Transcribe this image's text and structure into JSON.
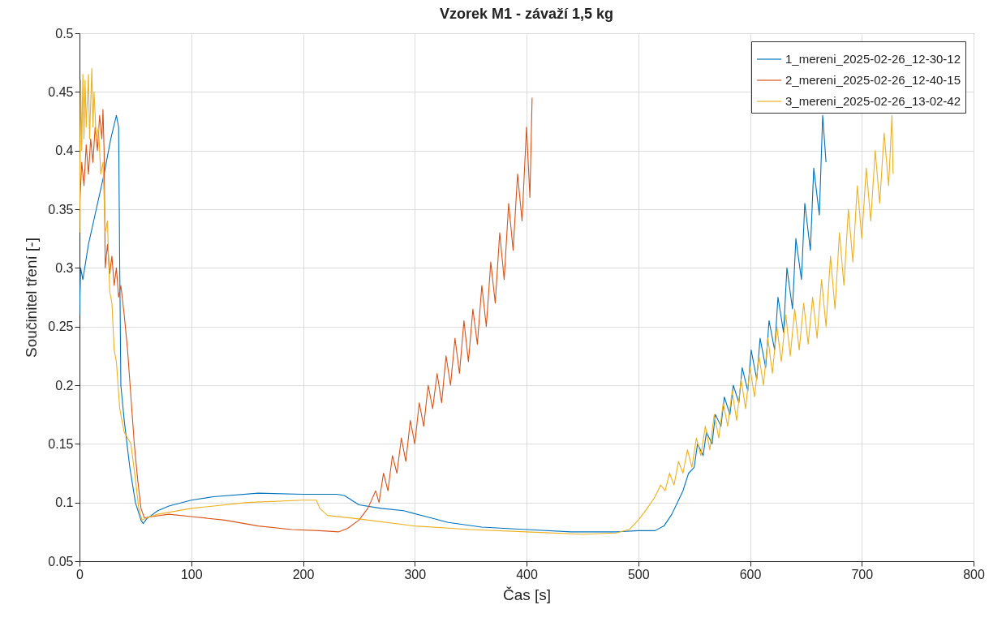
{
  "chart_data": {
    "type": "line",
    "title": "Vzorek M1 - závaží 1,5 kg",
    "xlabel": "Čas [s]",
    "ylabel": "Součinitel tření [-]",
    "xlim": [
      0,
      800
    ],
    "xticks": [
      0,
      100,
      200,
      300,
      400,
      500,
      600,
      700,
      800
    ],
    "ylim": [
      0.05,
      0.5
    ],
    "yticks": [
      0.05,
      0.1,
      0.15,
      0.2,
      0.25,
      0.3,
      0.35,
      0.4,
      0.45,
      0.5
    ],
    "grid": true,
    "legend": "top right",
    "series": [
      {
        "name": "1_mereni_2025-02-26_12-30-12",
        "color": "#0072bd",
        "x": [
          0,
          1,
          3,
          8,
          15,
          22,
          28,
          33,
          35,
          36,
          37,
          40,
          45,
          50,
          55,
          57,
          60,
          70,
          80,
          100,
          120,
          160,
          200,
          230,
          237,
          250,
          270,
          290,
          310,
          330,
          360,
          400,
          440,
          480,
          500,
          515,
          523,
          530,
          535,
          540,
          545,
          550,
          553,
          558,
          561,
          566,
          569,
          574,
          577,
          582,
          585,
          590,
          593,
          598,
          601,
          606,
          609,
          614,
          617,
          622,
          625,
          630,
          633,
          638,
          641,
          646,
          649,
          654,
          657,
          662,
          665,
          668
        ],
        "values": [
          0.26,
          0.3,
          0.29,
          0.32,
          0.35,
          0.38,
          0.41,
          0.43,
          0.42,
          0.3,
          0.2,
          0.17,
          0.13,
          0.1,
          0.085,
          0.082,
          0.086,
          0.093,
          0.097,
          0.102,
          0.105,
          0.108,
          0.107,
          0.107,
          0.106,
          0.098,
          0.095,
          0.093,
          0.088,
          0.083,
          0.079,
          0.077,
          0.075,
          0.075,
          0.076,
          0.076,
          0.08,
          0.09,
          0.1,
          0.11,
          0.125,
          0.13,
          0.15,
          0.14,
          0.16,
          0.15,
          0.175,
          0.165,
          0.19,
          0.175,
          0.2,
          0.185,
          0.215,
          0.195,
          0.23,
          0.205,
          0.24,
          0.215,
          0.255,
          0.23,
          0.275,
          0.245,
          0.3,
          0.265,
          0.325,
          0.29,
          0.355,
          0.315,
          0.385,
          0.345,
          0.43,
          0.39
        ]
      },
      {
        "name": "2_mereni_2025-02-26_12-40-15",
        "color": "#d95319",
        "x": [
          0,
          2,
          4,
          6,
          8,
          10,
          12,
          14,
          16,
          18,
          20,
          21,
          22,
          23,
          25,
          27,
          29,
          31,
          33,
          35,
          37,
          40,
          43,
          46,
          49,
          52,
          55,
          58,
          65,
          80,
          100,
          130,
          160,
          190,
          215,
          232,
          240,
          250,
          258,
          265,
          268,
          272,
          276,
          280,
          284,
          288,
          292,
          296,
          300,
          304,
          308,
          312,
          316,
          320,
          324,
          328,
          332,
          336,
          340,
          344,
          348,
          352,
          356,
          360,
          364,
          368,
          372,
          376,
          380,
          384,
          388,
          392,
          396,
          400,
          403,
          405
        ],
        "values": [
          0.35,
          0.39,
          0.37,
          0.405,
          0.38,
          0.41,
          0.39,
          0.42,
          0.4,
          0.43,
          0.41,
          0.435,
          0.4,
          0.3,
          0.32,
          0.295,
          0.31,
          0.285,
          0.3,
          0.275,
          0.285,
          0.26,
          0.23,
          0.19,
          0.15,
          0.12,
          0.095,
          0.087,
          0.088,
          0.09,
          0.088,
          0.085,
          0.08,
          0.077,
          0.076,
          0.075,
          0.078,
          0.085,
          0.095,
          0.11,
          0.1,
          0.125,
          0.11,
          0.14,
          0.125,
          0.155,
          0.135,
          0.17,
          0.15,
          0.185,
          0.165,
          0.2,
          0.18,
          0.21,
          0.185,
          0.225,
          0.2,
          0.24,
          0.21,
          0.255,
          0.22,
          0.265,
          0.235,
          0.285,
          0.25,
          0.305,
          0.27,
          0.33,
          0.29,
          0.355,
          0.315,
          0.38,
          0.34,
          0.42,
          0.36,
          0.445
        ]
      },
      {
        "name": "3_mereni_2025-02-26_13-02-42",
        "color": "#edb120",
        "x": [
          0,
          1,
          2,
          3,
          4,
          5,
          6,
          8,
          9,
          11,
          12,
          13,
          15,
          17,
          19,
          21,
          23,
          25,
          27,
          29,
          31,
          33,
          36,
          40,
          43,
          46,
          50,
          53,
          56,
          60,
          70,
          100,
          150,
          200,
          212,
          215,
          222,
          250,
          300,
          350,
          400,
          450,
          480,
          492,
          500,
          508,
          515,
          520,
          524,
          528,
          532,
          536,
          540,
          544,
          548,
          552,
          556,
          560,
          564,
          568,
          572,
          576,
          580,
          584,
          588,
          592,
          596,
          600,
          604,
          608,
          612,
          616,
          620,
          624,
          628,
          632,
          636,
          640,
          644,
          648,
          652,
          656,
          660,
          664,
          668,
          672,
          676,
          680,
          684,
          688,
          692,
          696,
          700,
          704,
          708,
          712,
          716,
          720,
          724,
          727,
          728
        ],
        "values": [
          0.33,
          0.46,
          0.4,
          0.465,
          0.41,
          0.46,
          0.42,
          0.465,
          0.41,
          0.47,
          0.42,
          0.45,
          0.41,
          0.42,
          0.38,
          0.39,
          0.33,
          0.34,
          0.28,
          0.27,
          0.23,
          0.22,
          0.18,
          0.16,
          0.155,
          0.15,
          0.12,
          0.095,
          0.085,
          0.087,
          0.09,
          0.095,
          0.1,
          0.102,
          0.102,
          0.095,
          0.089,
          0.086,
          0.08,
          0.077,
          0.075,
          0.073,
          0.074,
          0.077,
          0.085,
          0.095,
          0.105,
          0.115,
          0.11,
          0.125,
          0.115,
          0.135,
          0.125,
          0.145,
          0.13,
          0.155,
          0.14,
          0.165,
          0.145,
          0.175,
          0.155,
          0.185,
          0.165,
          0.195,
          0.17,
          0.205,
          0.18,
          0.215,
          0.19,
          0.225,
          0.2,
          0.24,
          0.21,
          0.25,
          0.22,
          0.26,
          0.225,
          0.265,
          0.23,
          0.27,
          0.235,
          0.275,
          0.24,
          0.29,
          0.25,
          0.31,
          0.265,
          0.33,
          0.285,
          0.35,
          0.305,
          0.37,
          0.325,
          0.385,
          0.34,
          0.4,
          0.355,
          0.415,
          0.37,
          0.43,
          0.38
        ]
      }
    ]
  }
}
